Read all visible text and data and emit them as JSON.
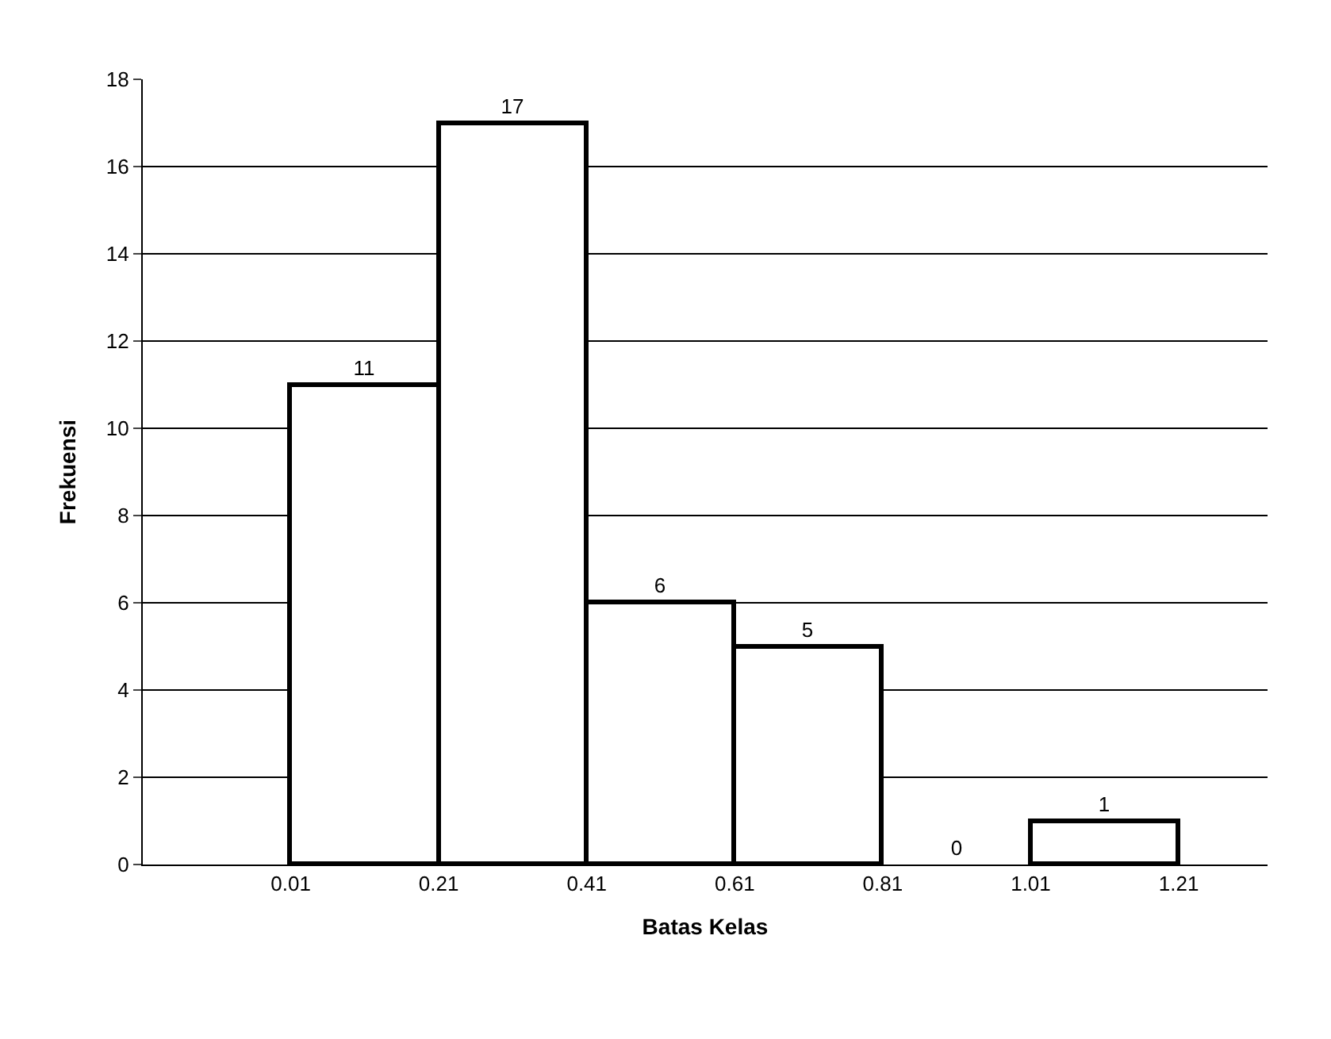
{
  "chart_data": {
    "type": "histogram",
    "xlabel": "Batas Kelas",
    "ylabel": "Frekuensi",
    "bins": [
      0.01,
      0.21,
      0.41,
      0.61,
      0.81,
      1.01,
      1.21
    ],
    "values": [
      11,
      17,
      6,
      5,
      0,
      1
    ],
    "color": "#ffffff",
    "xlim": [
      -0.19,
      1.33
    ],
    "xticks": [
      0.01,
      0.21,
      0.41,
      0.61,
      0.81,
      1.01,
      1.21
    ],
    "ylim": [
      0,
      18
    ],
    "yticks": [
      0,
      2,
      4,
      6,
      8,
      10,
      12,
      14,
      16,
      18
    ],
    "grid": "y",
    "data_labels": true,
    "legend": false
  }
}
